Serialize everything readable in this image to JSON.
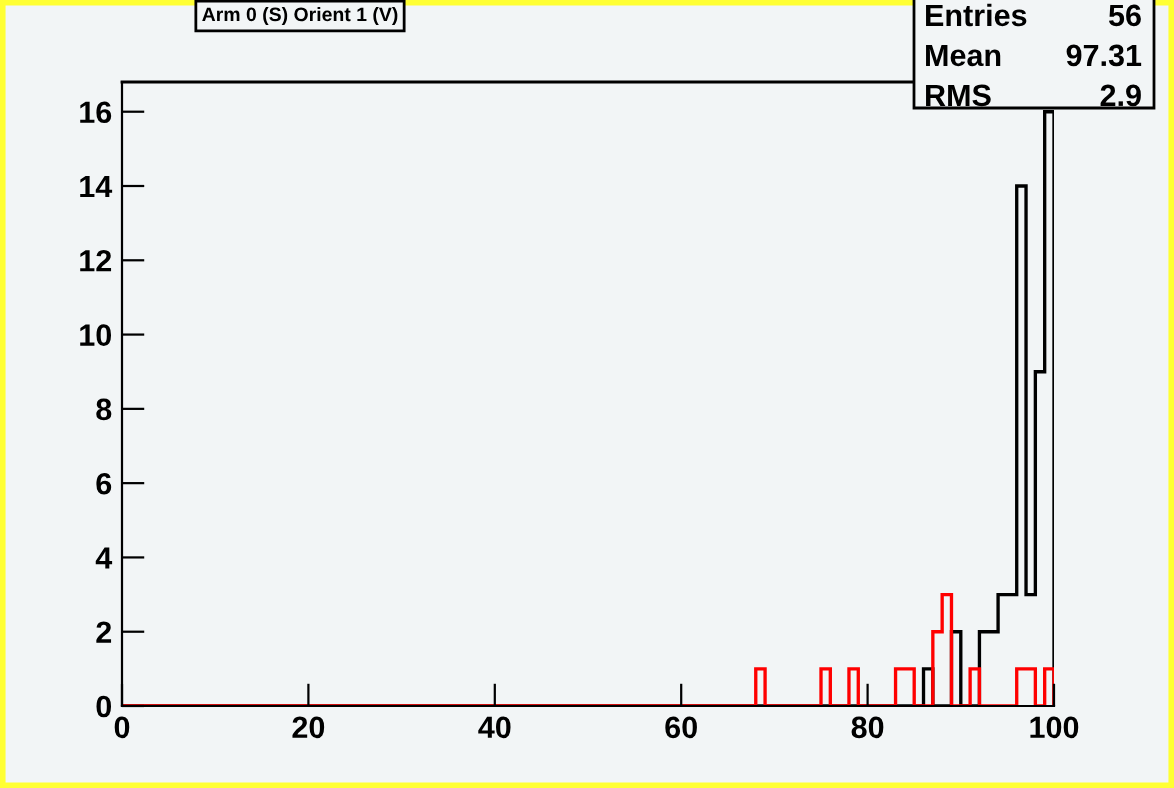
{
  "chart_data": {
    "type": "histogram",
    "title": "Arm 0 (S) Orient 1 (V)",
    "bins": [
      0,
      1,
      2,
      3,
      4,
      5,
      6,
      7,
      8,
      9,
      10,
      11,
      12,
      13,
      14,
      15,
      16,
      17,
      18,
      19,
      20,
      21,
      22,
      23,
      24,
      25,
      26,
      27,
      28,
      29,
      30,
      31,
      32,
      33,
      34,
      35,
      36,
      37,
      38,
      39,
      40,
      41,
      42,
      43,
      44,
      45,
      46,
      47,
      48,
      49,
      50,
      51,
      52,
      53,
      54,
      55,
      56,
      57,
      58,
      59,
      60,
      61,
      62,
      63,
      64,
      65,
      66,
      67,
      68,
      69,
      70,
      71,
      72,
      73,
      74,
      75,
      76,
      77,
      78,
      79,
      80,
      81,
      82,
      83,
      84,
      85,
      86,
      87,
      88,
      89,
      90,
      91,
      92,
      93,
      94,
      95,
      96,
      97,
      98,
      99,
      100
    ],
    "series": [
      {
        "color": "#000000",
        "values": [
          0,
          0,
          0,
          0,
          0,
          0,
          0,
          0,
          0,
          0,
          0,
          0,
          0,
          0,
          0,
          0,
          0,
          0,
          0,
          0,
          0,
          0,
          0,
          0,
          0,
          0,
          0,
          0,
          0,
          0,
          0,
          0,
          0,
          0,
          0,
          0,
          0,
          0,
          0,
          0,
          0,
          0,
          0,
          0,
          0,
          0,
          0,
          0,
          0,
          0,
          0,
          0,
          0,
          0,
          0,
          0,
          0,
          0,
          0,
          0,
          0,
          0,
          0,
          0,
          0,
          0,
          0,
          0,
          0,
          0,
          0,
          0,
          0,
          0,
          0,
          0,
          0,
          0,
          0,
          0,
          0,
          0,
          0,
          0,
          0,
          0,
          1,
          0,
          0,
          2,
          0,
          0,
          2,
          2,
          3,
          3,
          14,
          3,
          9,
          16
        ]
      },
      {
        "color": "#ff0000",
        "values": [
          0,
          0,
          0,
          0,
          0,
          0,
          0,
          0,
          0,
          0,
          0,
          0,
          0,
          0,
          0,
          0,
          0,
          0,
          0,
          0,
          0,
          0,
          0,
          0,
          0,
          0,
          0,
          0,
          0,
          0,
          0,
          0,
          0,
          0,
          0,
          0,
          0,
          0,
          0,
          0,
          0,
          0,
          0,
          0,
          0,
          0,
          0,
          0,
          0,
          0,
          0,
          0,
          0,
          0,
          0,
          0,
          0,
          0,
          0,
          0,
          0,
          0,
          0,
          0,
          0,
          0,
          0,
          0,
          1,
          0,
          0,
          0,
          0,
          0,
          0,
          1,
          0,
          0,
          1,
          0,
          0,
          0,
          0,
          1,
          1,
          0,
          0,
          2,
          3,
          0,
          0,
          1,
          0,
          0,
          0,
          0,
          1,
          1,
          0,
          1
        ]
      }
    ],
    "xlim": [
      0,
      100
    ],
    "xticks": [
      0,
      20,
      40,
      60,
      80,
      100
    ],
    "ylim": [
      0,
      16.8
    ],
    "yticks": [
      0,
      2,
      4,
      6,
      8,
      10,
      12,
      14,
      16
    ],
    "annotations": [
      "Entries",
      "56",
      "Mean",
      "97.31",
      "RMS",
      "2.9"
    ],
    "grid": false
  }
}
